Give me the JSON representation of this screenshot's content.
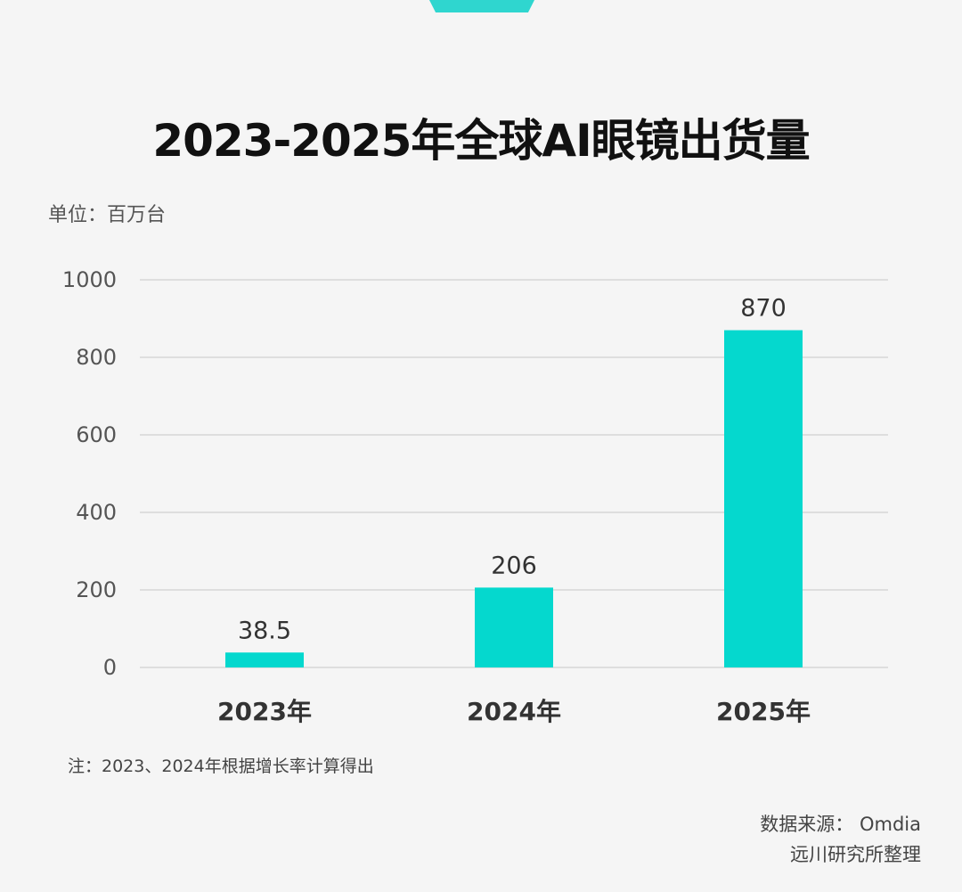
{
  "colors": {
    "bar": "#05d8ce",
    "accent": "#2fd6cf",
    "grid": "#d6d6d6",
    "background": "#f5f5f5"
  },
  "unit_label": "单位：百万台",
  "note": "注：2023、2024年根据增长率计算得出",
  "source": {
    "line1": "数据来源： Omdia",
    "line2": "远川研究所整理"
  },
  "chart_data": {
    "type": "bar",
    "title": "2023-2025年全球AI眼镜出货量",
    "xlabel": "",
    "ylabel": "",
    "categories": [
      "2023年",
      "2024年",
      "2025年"
    ],
    "values": [
      38.5,
      206,
      870
    ],
    "data_labels": [
      "38.5",
      "206",
      "870"
    ],
    "ylim": [
      0,
      1000
    ],
    "yticks": [
      0,
      200,
      400,
      600,
      800,
      1000
    ],
    "grid": true,
    "legend": "none"
  }
}
